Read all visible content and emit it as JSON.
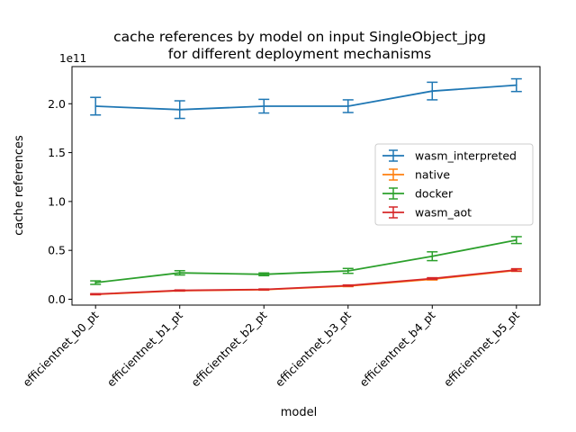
{
  "chart_data": {
    "type": "line",
    "title_line1": "cache references by model on input SingleObject_jpg",
    "title_line2": "for different deployment mechanisms",
    "xlabel": "model",
    "ylabel": "cache references",
    "y_multiplier": "1e11",
    "categories": [
      "efficientnet_b0_pt",
      "efficientnet_b1_pt",
      "efficientnet_b2_pt",
      "efficientnet_b3_pt",
      "efficientnet_b4_pt",
      "efficientnet_b5_pt"
    ],
    "ylim": [
      -0.06,
      2.38
    ],
    "yticks": [
      0.0,
      0.5,
      1.0,
      1.5,
      2.0
    ],
    "ytick_labels": [
      "0.0",
      "0.5",
      "1.0",
      "1.5",
      "2.0"
    ],
    "grid": false,
    "legend_position": "center-right",
    "series": [
      {
        "name": "wasm_interpreted",
        "color": "#1f77b4",
        "values": [
          1.975,
          1.94,
          1.975,
          1.975,
          2.13,
          2.19
        ],
        "errors": [
          0.09,
          0.09,
          0.07,
          0.065,
          0.09,
          0.065
        ]
      },
      {
        "name": "native",
        "color": "#ff7f0e",
        "values": [
          0.05,
          0.087,
          0.097,
          0.135,
          0.205,
          0.295
        ],
        "errors": [
          0.004,
          0.004,
          0.004,
          0.006,
          0.008,
          0.01
        ]
      },
      {
        "name": "docker",
        "color": "#2ca02c",
        "values": [
          0.17,
          0.27,
          0.255,
          0.29,
          0.44,
          0.605
        ],
        "errors": [
          0.018,
          0.022,
          0.014,
          0.025,
          0.045,
          0.035
        ]
      },
      {
        "name": "wasm_aot",
        "color": "#d62728",
        "values": [
          0.052,
          0.09,
          0.1,
          0.14,
          0.212,
          0.3
        ],
        "errors": [
          0.005,
          0.005,
          0.005,
          0.006,
          0.008,
          0.012
        ]
      }
    ]
  }
}
